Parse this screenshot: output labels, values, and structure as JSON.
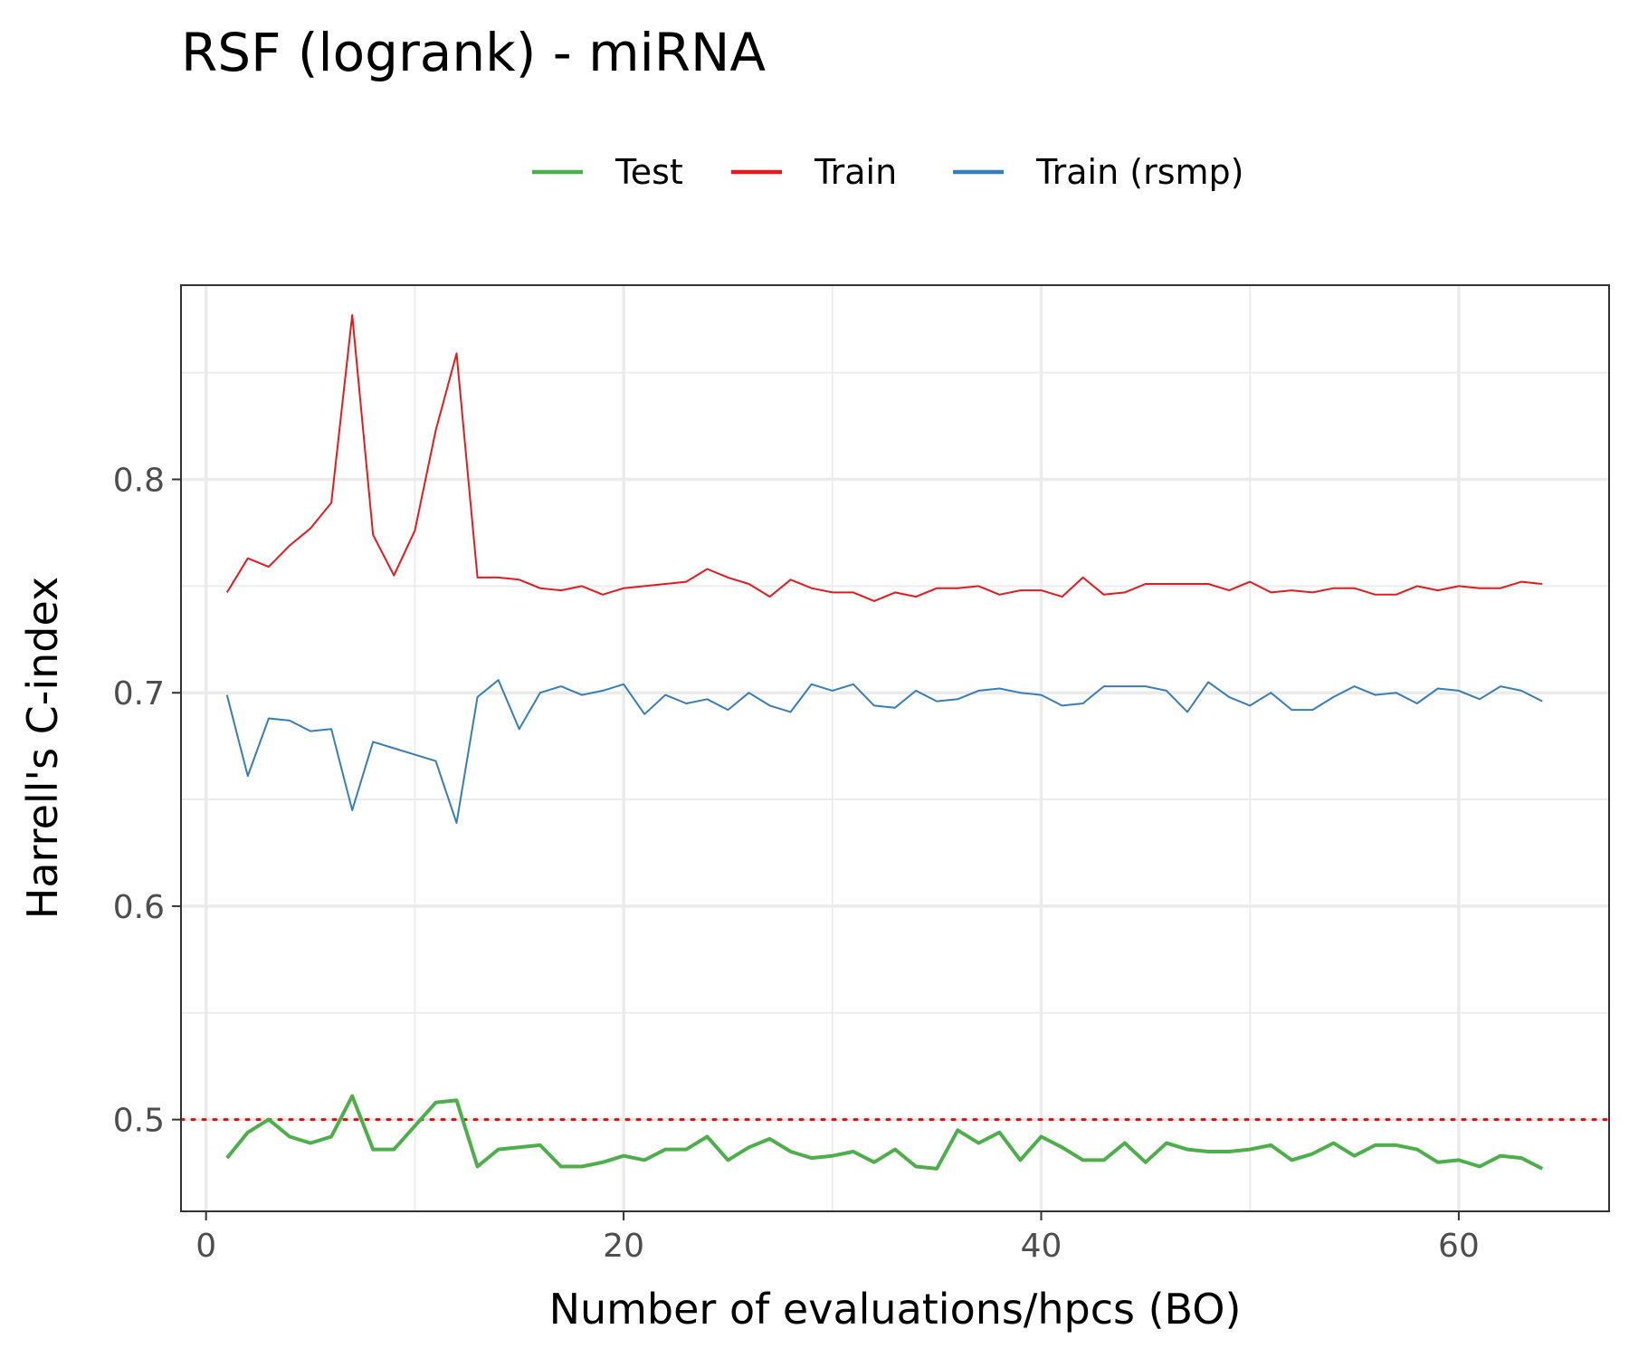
{
  "chart_data": {
    "type": "line",
    "title": "RSF (logrank) - miRNA",
    "xlabel": "Number of evaluations/hpcs (BO)",
    "ylabel": "Harrell's C-index",
    "xlim": [
      -1.2,
      67.2
    ],
    "ylim": [
      0.457,
      0.891
    ],
    "x_ticks": [
      0,
      20,
      40,
      60
    ],
    "x_tick_labels": [
      "0",
      "20",
      "40",
      "60"
    ],
    "y_ticks": [
      0.5,
      0.6,
      0.7,
      0.8
    ],
    "y_tick_labels": [
      "0.5",
      "0.6",
      "0.7",
      "0.8"
    ],
    "x_minor_ticks": [
      10,
      30,
      50
    ],
    "y_minor_ticks": [
      0.55,
      0.65,
      0.75,
      0.85
    ],
    "grid": true,
    "legend_position": "top",
    "reference_line": {
      "y": 0.5,
      "color": "#ff0000",
      "style": "dotted"
    },
    "x": [
      1,
      2,
      3,
      4,
      5,
      6,
      7,
      8,
      9,
      10,
      11,
      12,
      13,
      14,
      15,
      16,
      17,
      18,
      19,
      20,
      21,
      22,
      23,
      24,
      25,
      26,
      27,
      28,
      29,
      30,
      31,
      32,
      33,
      34,
      35,
      36,
      37,
      38,
      39,
      40,
      41,
      42,
      43,
      44,
      45,
      46,
      47,
      48,
      49,
      50,
      51,
      52,
      53,
      54,
      55,
      56,
      57,
      58,
      59,
      60,
      61,
      62,
      63,
      64
    ],
    "series": [
      {
        "name": "Test",
        "color": "#4daf4a",
        "values": [
          0.482,
          0.494,
          0.5,
          0.492,
          0.489,
          0.492,
          0.511,
          0.486,
          0.486,
          0.497,
          0.508,
          0.509,
          0.478,
          0.486,
          0.487,
          0.488,
          0.478,
          0.478,
          0.48,
          0.483,
          0.481,
          0.486,
          0.486,
          0.492,
          0.481,
          0.487,
          0.491,
          0.485,
          0.482,
          0.483,
          0.485,
          0.48,
          0.486,
          0.478,
          0.477,
          0.495,
          0.489,
          0.494,
          0.481,
          0.492,
          0.487,
          0.481,
          0.481,
          0.489,
          0.48,
          0.489,
          0.486,
          0.485,
          0.485,
          0.486,
          0.488,
          0.481,
          0.484,
          0.489,
          0.483,
          0.488,
          0.488,
          0.486,
          0.48,
          0.481,
          0.478,
          0.483,
          0.482,
          0.477
        ]
      },
      {
        "name": "Train",
        "color": "#e41a1c",
        "values": [
          0.747,
          0.763,
          0.759,
          0.769,
          0.777,
          0.789,
          0.877,
          0.774,
          0.755,
          0.776,
          0.823,
          0.859,
          0.754,
          0.754,
          0.753,
          0.749,
          0.748,
          0.75,
          0.746,
          0.749,
          0.75,
          0.751,
          0.752,
          0.758,
          0.754,
          0.751,
          0.745,
          0.753,
          0.749,
          0.747,
          0.747,
          0.743,
          0.747,
          0.745,
          0.749,
          0.749,
          0.75,
          0.746,
          0.748,
          0.748,
          0.745,
          0.754,
          0.746,
          0.747,
          0.751,
          0.751,
          0.751,
          0.751,
          0.748,
          0.752,
          0.747,
          0.748,
          0.747,
          0.749,
          0.749,
          0.746,
          0.746,
          0.75,
          0.748,
          0.75,
          0.749,
          0.749,
          0.752,
          0.751
        ]
      },
      {
        "name": "Train (rsmp)",
        "color": "#377eb8",
        "values": [
          0.699,
          0.661,
          0.688,
          0.687,
          0.682,
          0.683,
          0.645,
          0.677,
          0.674,
          0.671,
          0.668,
          0.639,
          0.698,
          0.706,
          0.683,
          0.7,
          0.703,
          0.699,
          0.701,
          0.704,
          0.69,
          0.699,
          0.695,
          0.697,
          0.692,
          0.7,
          0.694,
          0.691,
          0.704,
          0.701,
          0.704,
          0.694,
          0.693,
          0.701,
          0.696,
          0.697,
          0.701,
          0.702,
          0.7,
          0.699,
          0.694,
          0.695,
          0.703,
          0.703,
          0.703,
          0.701,
          0.691,
          0.705,
          0.698,
          0.694,
          0.7,
          0.692,
          0.692,
          0.698,
          0.703,
          0.699,
          0.7,
          0.695,
          0.702,
          0.701,
          0.697,
          0.703,
          0.701,
          0.696
        ]
      }
    ]
  }
}
